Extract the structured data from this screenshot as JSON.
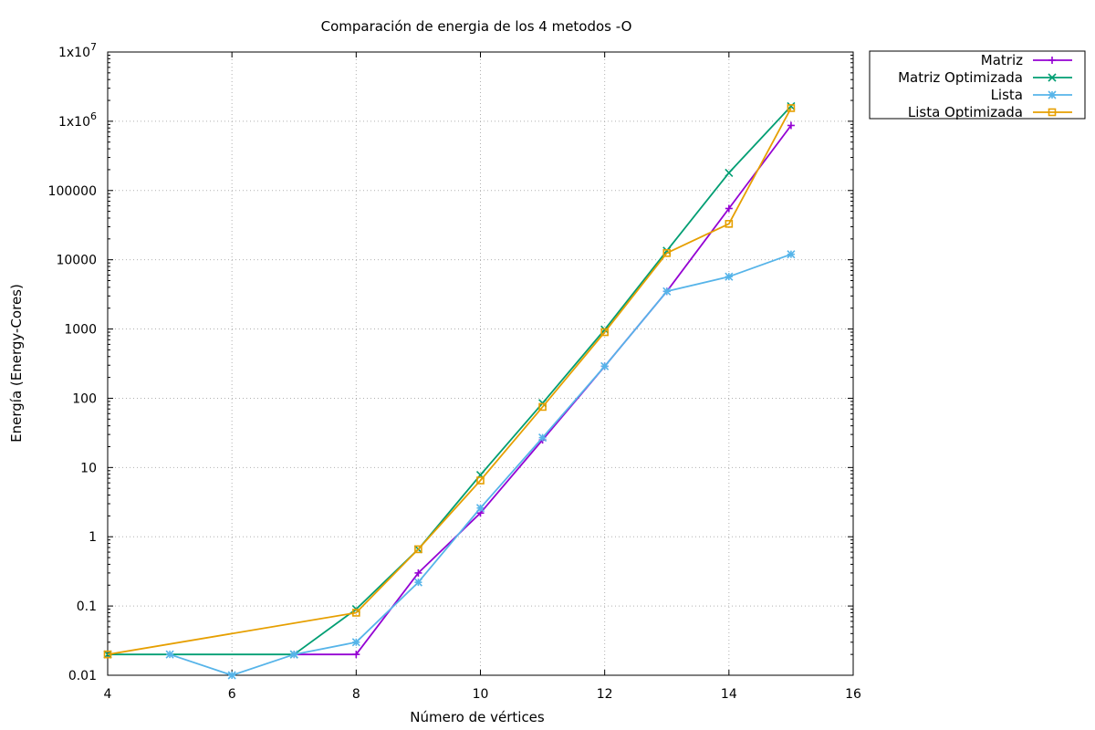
{
  "chart_data": {
    "type": "line",
    "title": "Comparación de energia de los 4 metodos -O",
    "xlabel": "Número de vértices",
    "ylabel": "Energía (Energy-Cores)",
    "xlim": [
      4,
      16
    ],
    "ylim": [
      0.01,
      10000000
    ],
    "yscale": "log",
    "grid": true,
    "legend_position": "outside-top-right",
    "x_ticks": [
      {
        "value": 4,
        "label": "4"
      },
      {
        "value": 6,
        "label": "6"
      },
      {
        "value": 8,
        "label": "8"
      },
      {
        "value": 10,
        "label": "10"
      },
      {
        "value": 12,
        "label": "12"
      },
      {
        "value": 14,
        "label": "14"
      },
      {
        "value": 16,
        "label": "16"
      }
    ],
    "y_ticks": [
      {
        "value": 0.01,
        "label": "0.01"
      },
      {
        "value": 0.1,
        "label": "0.1"
      },
      {
        "value": 1,
        "label": "1"
      },
      {
        "value": 10,
        "label": "10"
      },
      {
        "value": 100,
        "label": "100"
      },
      {
        "value": 1000,
        "label": "1000"
      },
      {
        "value": 10000,
        "label": "10000"
      },
      {
        "value": 100000,
        "label": "100000"
      },
      {
        "value": 1000000,
        "label": "1x10",
        "sup": "6"
      },
      {
        "value": 10000000,
        "label": "1x10",
        "sup": "7"
      }
    ],
    "series": [
      {
        "name": "Matriz",
        "color": "#9400d3",
        "marker": "plus",
        "x": [
          7,
          8,
          9,
          10,
          11,
          12,
          13,
          14,
          15
        ],
        "y": [
          0.02,
          0.02,
          0.3,
          2.2,
          25,
          290,
          3500,
          55000,
          870000
        ]
      },
      {
        "name": "Matriz Optimizada",
        "color": "#009e73",
        "marker": "cross",
        "x": [
          4,
          7,
          8,
          9,
          10,
          11,
          12,
          13,
          14,
          15
        ],
        "y": [
          0.02,
          0.02,
          0.09,
          0.66,
          7.8,
          85,
          980,
          13500,
          180000,
          1650000
        ]
      },
      {
        "name": "Lista",
        "color": "#56b4e9",
        "marker": "star",
        "x": [
          5,
          6,
          7,
          8,
          9,
          10,
          11,
          12,
          13,
          14,
          15
        ],
        "y": [
          0.02,
          0.01,
          0.02,
          0.03,
          0.22,
          2.6,
          27,
          290,
          3500,
          5700,
          12000
        ]
      },
      {
        "name": "Lista Optimizada",
        "color": "#e69f00",
        "marker": "square",
        "x": [
          4,
          8,
          9,
          10,
          11,
          12,
          13,
          14,
          15
        ],
        "y": [
          0.02,
          0.08,
          0.66,
          6.5,
          75,
          900,
          12500,
          33000,
          1550000
        ]
      }
    ]
  }
}
